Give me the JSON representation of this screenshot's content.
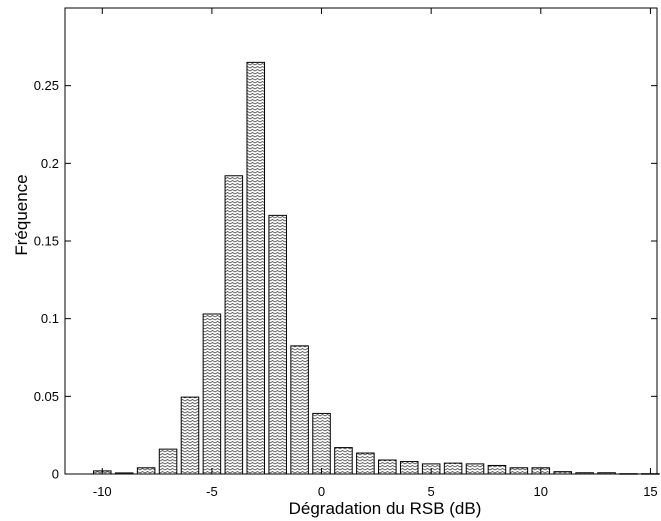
{
  "chart_data": {
    "type": "bar",
    "title": "",
    "xlabel": "Dégradation du RSB (dB)",
    "ylabel": "Fréquence",
    "xlim": [
      -11.7,
      15.3
    ],
    "ylim": [
      0,
      0.3
    ],
    "x_ticks": [
      -10,
      -5,
      0,
      5,
      10,
      15
    ],
    "x_tick_labels": [
      "-10",
      "-5",
      "0",
      "5",
      "10",
      "15"
    ],
    "y_ticks": [
      0,
      0.05,
      0.1,
      0.15,
      0.2,
      0.25
    ],
    "y_tick_labels": [
      "0",
      "0.05",
      "0.1",
      "0.15",
      "0.2",
      "0.25"
    ],
    "grid": false,
    "bar_pattern": "hatched",
    "bar_color": "#707070",
    "x": [
      -10,
      -9,
      -8,
      -7,
      -6,
      -5,
      -4,
      -3,
      -2,
      -1,
      0,
      1,
      2,
      3,
      4,
      5,
      6,
      7,
      8,
      9,
      10,
      11,
      12,
      13,
      14,
      15
    ],
    "values": [
      0.002,
      0.0007,
      0.004,
      0.016,
      0.0495,
      0.103,
      0.192,
      0.265,
      0.1665,
      0.0825,
      0.039,
      0.017,
      0.0135,
      0.009,
      0.008,
      0.0065,
      0.007,
      0.0065,
      0.0055,
      0.004,
      0.004,
      0.0015,
      0.0008,
      0.0008,
      0.0002,
      0.0002
    ]
  }
}
